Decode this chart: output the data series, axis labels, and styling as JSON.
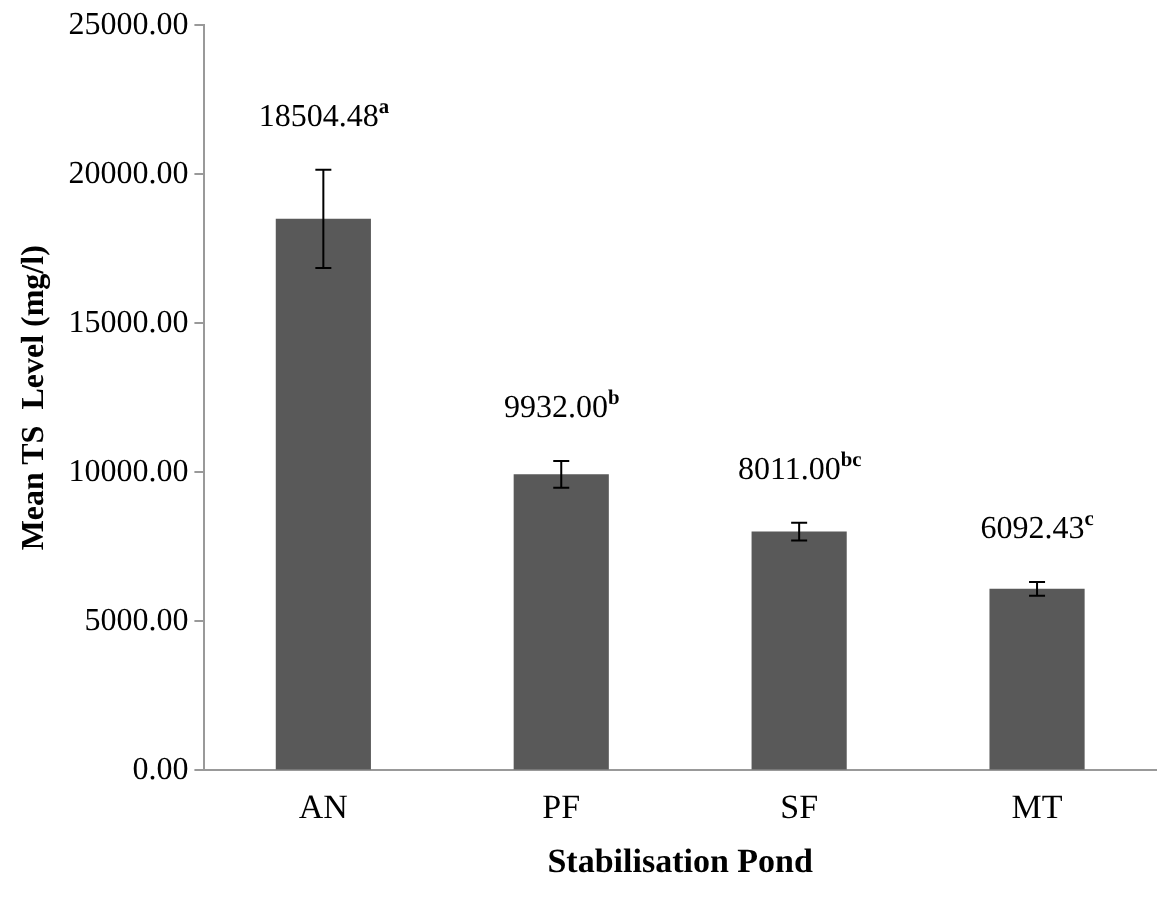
{
  "chart_data": {
    "type": "bar",
    "xlabel": "Stabilisation Pond",
    "ylabel": "Mean TS  Level (mg/l)",
    "categories": [
      "AN",
      "PF",
      "SF",
      "MT"
    ],
    "values": [
      18504.48,
      9932.0,
      8011.0,
      6092.43
    ],
    "errors": [
      1650,
      450,
      300,
      230
    ],
    "value_labels": [
      "18504.48$^{a}$",
      "9932.00$^{b}$",
      "8011.00$^{bc}$",
      "6092.43$^{c}$"
    ],
    "color": "#595959",
    "ylim": [
      0,
      25000
    ],
    "yticks": [
      {
        "value": 0,
        "label": "0.00"
      },
      {
        "value": 5000,
        "label": "5000.00"
      },
      {
        "value": 10000,
        "label": "10000.00"
      },
      {
        "value": 15000,
        "label": "15000.00"
      },
      {
        "value": 20000,
        "label": "20000.00"
      },
      {
        "value": 25000,
        "label": "25000.00"
      }
    ],
    "grid": false,
    "legend": false
  }
}
